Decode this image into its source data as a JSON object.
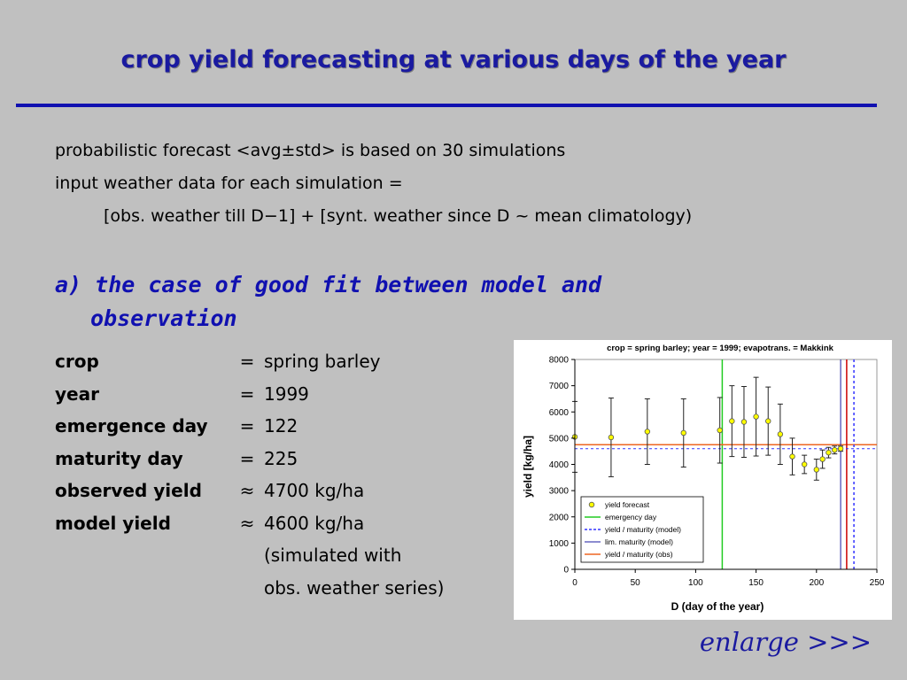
{
  "slide": {
    "title": "crop yield forecasting at various days of the year",
    "intro_lines": [
      "probabilistic forecast <avg±std> is based on 30 simulations",
      "input weather data for each simulation =",
      "[obs. weather till D−1] + [synt. weather since D ~ mean climatology)"
    ],
    "case_heading_line1": "a) the case of good fit between model and",
    "case_heading_line2": "observation",
    "facts": [
      {
        "label": "crop",
        "op": "=",
        "value": "spring barley"
      },
      {
        "label": "year",
        "op": "=",
        "value": "1999"
      },
      {
        "label": "emergence day",
        "op": "=",
        "value": "122"
      },
      {
        "label": "maturity day",
        "op": "=",
        "value": "225"
      },
      {
        "label": "observed yield",
        "op": "≈",
        "value": "4700 kg/ha"
      },
      {
        "label": "model yield",
        "op": "≈",
        "value": "4600 kg/ha"
      },
      {
        "label": "",
        "op": "",
        "value": "(simulated with"
      },
      {
        "label": "",
        "op": "",
        "value": "obs. weather series)"
      }
    ],
    "enlarge_text": "enlarge",
    "enlarge_arrows": ">>>",
    "colors": {
      "background": "#c0c0c0",
      "title": "#1a1aa0",
      "rule": "#1010b0",
      "forecast_marker": "#ffff00",
      "emergence": "#22cc22",
      "model_yield": "#3333ff",
      "lim_maturity": "#1a1aa0",
      "obs_yield": "#ee6622",
      "obs_maturity": "#cc0000"
    }
  },
  "chart_data": {
    "type": "scatter",
    "title": "crop = spring barley; year = 1999; evapotrans. = Makkink",
    "xlabel": "D  (day of the year)",
    "ylabel": "yield  [kg/ha]",
    "xlim": [
      0,
      250
    ],
    "ylim": [
      0,
      8000
    ],
    "xticks": [
      0,
      50,
      100,
      150,
      200,
      250
    ],
    "yticks": [
      0,
      1000,
      2000,
      3000,
      4000,
      5000,
      6000,
      7000,
      8000
    ],
    "series": [
      {
        "name": "yield forecast",
        "kind": "points_with_errorbars",
        "x": [
          0,
          30,
          60,
          90,
          120,
          130,
          140,
          150,
          160,
          170,
          180,
          190,
          200,
          205,
          210,
          215,
          220
        ],
        "y": [
          5050,
          5030,
          5250,
          5200,
          5300,
          5650,
          5620,
          5820,
          5650,
          5150,
          4300,
          4000,
          3800,
          4200,
          4450,
          4550,
          4600
        ],
        "std": [
          1350,
          1500,
          1250,
          1300,
          1250,
          1350,
          1350,
          1500,
          1300,
          1150,
          700,
          350,
          400,
          350,
          200,
          150,
          100
        ]
      },
      {
        "name": "emergency day",
        "kind": "vline",
        "x": 122
      },
      {
        "name": "yield / maturity (model)",
        "kind": "dashed_hline_vline",
        "y": 4600,
        "x": 231
      },
      {
        "name": "lim. maturity (model)",
        "kind": "vline",
        "x": 220
      },
      {
        "name": "yield / maturity (obs)",
        "kind": "hline_vline",
        "y": 4750,
        "x": 225
      }
    ],
    "legend_position": "bottom-left"
  }
}
